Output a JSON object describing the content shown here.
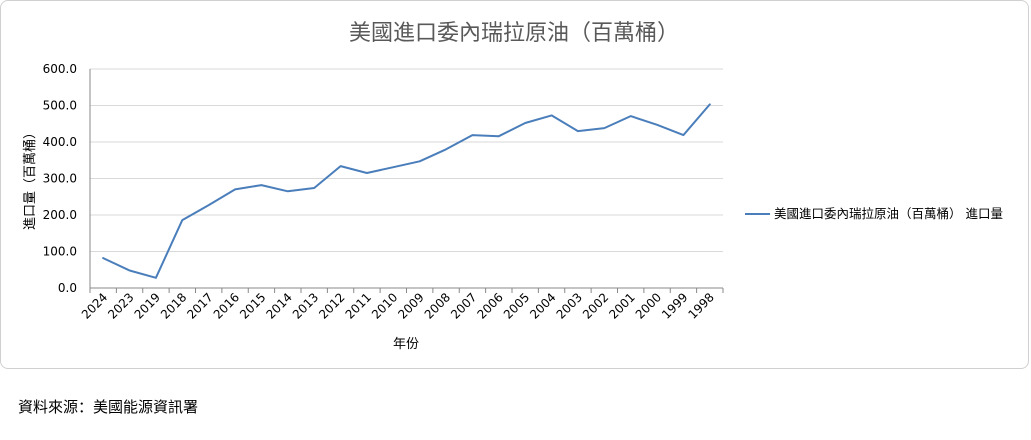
{
  "source": "資料來源：美國能源資訊署",
  "colors": {
    "line": "#4a7ebb",
    "grid": "#d9d9d9",
    "axis": "#888888",
    "title": "#595959",
    "text": "#000000"
  },
  "chart_data": {
    "type": "line",
    "title": "美國進口委內瑞拉原油（百萬桶）",
    "xlabel": "年份",
    "ylabel": "進口量（百萬桶）",
    "ylim": [
      0,
      600
    ],
    "yticks": [
      0,
      100,
      200,
      300,
      400,
      500,
      600
    ],
    "ytick_labels": [
      "0.0",
      "100.0",
      "200.0",
      "300.0",
      "400.0",
      "500.0",
      "600.0"
    ],
    "grid": true,
    "legend_position": "right",
    "categories": [
      "2024",
      "2023",
      "2019",
      "2018",
      "2017",
      "2016",
      "2015",
      "2014",
      "2013",
      "2012",
      "2011",
      "2010",
      "2009",
      "2008",
      "2007",
      "2006",
      "2005",
      "2004",
      "2003",
      "2002",
      "2001",
      "2000",
      "1999",
      "1998"
    ],
    "series": [
      {
        "name": "美國進口委內瑞拉原油（百萬桶） 進口量",
        "values": [
          82,
          48,
          28,
          186,
          227,
          270,
          282,
          265,
          274,
          334,
          315,
          331,
          347,
          380,
          419,
          416,
          452,
          473,
          430,
          438,
          471,
          447,
          419,
          503
        ]
      }
    ]
  }
}
